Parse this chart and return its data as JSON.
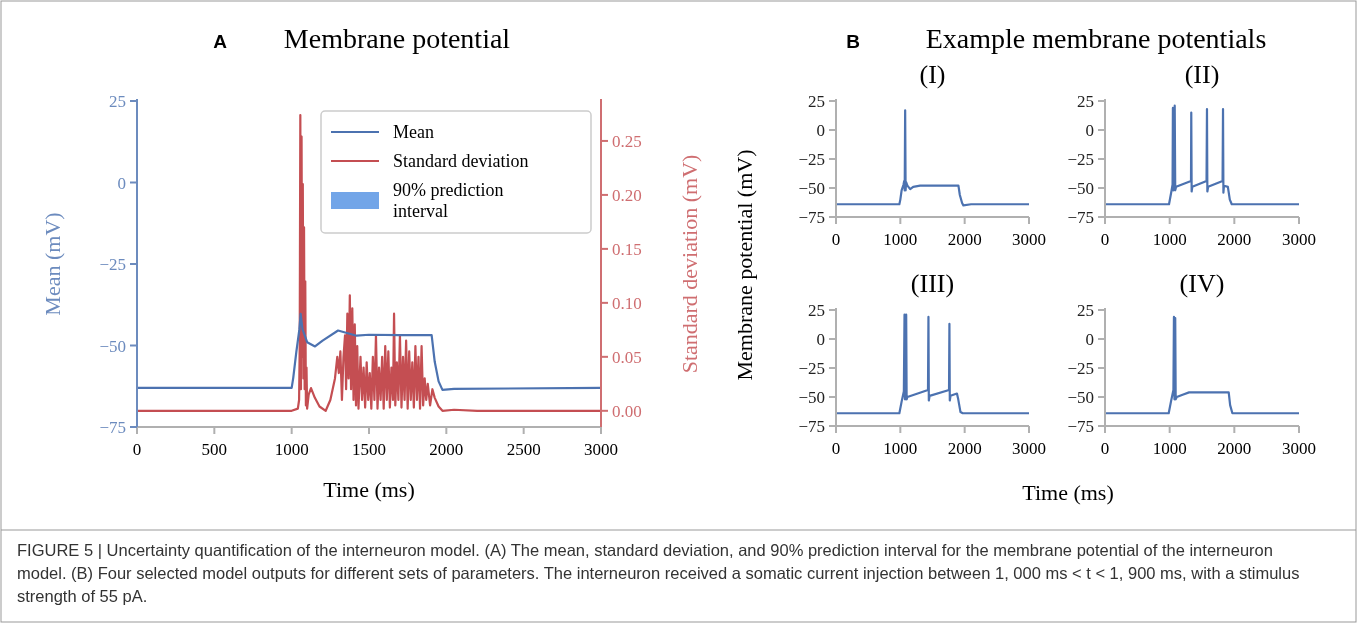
{
  "chart_data": [
    {
      "type": "line",
      "title": "Membrane potential",
      "xlabel": "Time (ms)",
      "ylabel": "Mean (mV)",
      "y2label": "Standard deviation (mV)",
      "legend": "top right",
      "xlim": [
        0,
        3000
      ],
      "xticks": [
        0,
        500,
        1000,
        1500,
        2000,
        2500,
        3000
      ],
      "ylim": [
        -75,
        25
      ],
      "yticks": [
        {
          "value": 25,
          "label": "25"
        },
        {
          "value": 0,
          "label": "0"
        },
        {
          "value": -25,
          "label": "−25"
        },
        {
          "value": -50,
          "label": "−50"
        },
        {
          "value": -75,
          "label": "−75"
        }
      ],
      "y2lim": [
        -0.015,
        0.287
      ],
      "y2ticks": [
        {
          "value": 0,
          "label": "0.00"
        },
        {
          "value": 0.05,
          "label": "0.05"
        },
        {
          "value": 0.1,
          "label": "0.10"
        },
        {
          "value": 0.15,
          "label": "0.15"
        },
        {
          "value": 0.2,
          "label": "0.20"
        },
        {
          "value": 0.25,
          "label": "0.25"
        }
      ],
      "annotations": [
        "A",
        "FIGURE 5 | Uncertainty quantification of the interneuron model. (A) The mean, standard deviation, and 90% prediction interval for the membrane potential of the interneuron model. (B) Four selected model outputs for different sets of parameters. The interneuron received a somatic current injection between 1, 000 ms < t < 1, 900 ms, with a stimulus strength of 55 pA."
      ],
      "series": [
        {
          "name": "Mean",
          "color": "#4c72b0",
          "axis": "y",
          "x": [
            0,
            1000,
            1010,
            1030,
            1050,
            1058,
            1070,
            1100,
            1151,
            1200,
            1300,
            1420,
            1500,
            1700,
            1905,
            1925,
            1950,
            1975,
            2050,
            3000
          ],
          "values": [
            -63,
            -63,
            -60,
            -52,
            -45,
            -40.3,
            -45,
            -49,
            -50.3,
            -48.5,
            -45.4,
            -47,
            -46.7,
            -46.8,
            -46.8,
            -55,
            -61,
            -63.6,
            -63.3,
            -63
          ]
        },
        {
          "name": "Standard deviation",
          "color": "#c44e52",
          "axis": "y2",
          "x": [
            0,
            1000,
            1040,
            1048,
            1052,
            1056,
            1060,
            1064,
            1068,
            1072,
            1076,
            1080,
            1084,
            1088,
            1092,
            1096,
            1100,
            1110,
            1125,
            1150,
            1180,
            1220,
            1250,
            1280,
            1295,
            1305,
            1315,
            1325,
            1335,
            1345,
            1352,
            1360,
            1368,
            1376,
            1384,
            1392,
            1400,
            1408,
            1416,
            1424,
            1432,
            1445,
            1455,
            1465,
            1475,
            1485,
            1495,
            1505,
            1515,
            1525,
            1535,
            1545,
            1555,
            1565,
            1575,
            1585,
            1595,
            1605,
            1615,
            1625,
            1635,
            1645,
            1655,
            1662,
            1670,
            1680,
            1690,
            1700,
            1710,
            1720,
            1730,
            1740,
            1750,
            1760,
            1770,
            1780,
            1790,
            1800,
            1810,
            1820,
            1830,
            1840,
            1850,
            1860,
            1870,
            1880,
            1895,
            1910,
            1925,
            1950,
            1975,
            2050,
            2200,
            3000
          ],
          "values": [
            0,
            0,
            0.002,
            0.01,
            0.06,
            0.274,
            0.02,
            0.254,
            0.05,
            0.21,
            0.03,
            0.17,
            0.02,
            0.12,
            0.005,
            0.04,
            0.002,
            0.015,
            0.021,
            0.012,
            0.004,
            0,
            0.01,
            0.03,
            0.05,
            0.035,
            0.055,
            0.01,
            0.05,
            0.07,
            0.02,
            0.09,
            0.03,
            0.107,
            0.02,
            0.095,
            0.01,
            0.08,
            0.005,
            0.06,
            0.002,
            0.05,
            0.01,
            0.04,
            0.003,
            0.045,
            0.01,
            0.035,
            0.002,
            0.05,
            0.01,
            0.07,
            0.002,
            0.04,
            0.01,
            0.05,
            0.002,
            0.06,
            0.01,
            0.055,
            0.003,
            0.04,
            0.01,
            0.09,
            0.005,
            0.045,
            0.01,
            0.07,
            0.003,
            0.05,
            0.01,
            0.065,
            0.002,
            0.055,
            0.01,
            0.045,
            0.003,
            0.06,
            0.01,
            0.05,
            0.002,
            0.06,
            0.005,
            0.03,
            0.01,
            0.025,
            0.005,
            0.02,
            0.012,
            0.004,
            0,
            0.001,
            0,
            0
          ]
        },
        {
          "name": "90% prediction interval",
          "type": "area",
          "color": "#72a5e8"
        }
      ]
    },
    {
      "type": "line",
      "title": "(I)",
      "ylabel": "Membrane potential (mV)",
      "annotations": [
        "B",
        "Example membrane potentials"
      ],
      "xlim": [
        0,
        3000
      ],
      "xticks": [
        0,
        1000,
        2000,
        3000
      ],
      "ylim": [
        -75,
        25
      ],
      "yticks": [
        {
          "value": 25,
          "label": "25"
        },
        {
          "value": 0,
          "label": "0"
        },
        {
          "value": -25,
          "label": "−25"
        },
        {
          "value": -50,
          "label": "−50"
        },
        {
          "value": -75,
          "label": "−75"
        }
      ],
      "series": [
        {
          "color": "#4c72b0",
          "x": [
            0,
            985,
            1000,
            1020,
            1050,
            1060,
            1068,
            1075,
            1082,
            1090,
            1110,
            1153,
            1200,
            1308,
            1600,
            1903,
            1925,
            1960,
            1980,
            2100,
            3000
          ],
          "values": [
            -64,
            -64,
            -60,
            -52,
            -47,
            -44,
            -52,
            17,
            -52,
            -45,
            -48,
            -51,
            -49,
            -48,
            -48,
            -48,
            -56,
            -63,
            -65,
            -64,
            -64
          ]
        }
      ]
    },
    {
      "type": "line",
      "title": "(II)",
      "xlim": [
        0,
        3000
      ],
      "xticks": [
        0,
        1000,
        2000,
        3000
      ],
      "ylim": [
        -75,
        25
      ],
      "yticks": [
        {
          "value": 25,
          "label": "25"
        },
        {
          "value": 0,
          "label": "0"
        },
        {
          "value": -25,
          "label": "−25"
        },
        {
          "value": -50,
          "label": "−50"
        },
        {
          "value": -75,
          "label": "−75"
        }
      ],
      "series": [
        {
          "color": "#4c72b0",
          "x": [
            0,
            990,
            1030,
            1045,
            1050,
            1058,
            1070,
            1078,
            1086,
            1100,
            1330,
            1334,
            1340,
            1350,
            1570,
            1577,
            1583,
            1595,
            1818,
            1825,
            1831,
            1840,
            1900,
            1930,
            1960,
            2000,
            3000
          ],
          "values": [
            -64,
            -64,
            -52,
            -47,
            19,
            -52,
            -46,
            21,
            -52,
            -49,
            -44,
            15,
            -53,
            -49,
            -44,
            18,
            -53,
            -49,
            -44,
            18,
            -54,
            -48,
            -49,
            -60,
            -64,
            -64,
            -64
          ]
        }
      ]
    },
    {
      "type": "line",
      "title": "(III)",
      "xlim": [
        0,
        3000
      ],
      "xticks": [
        0,
        1000,
        2000,
        3000
      ],
      "ylim": [
        -75,
        25
      ],
      "yticks": [
        {
          "value": 25,
          "label": "25"
        },
        {
          "value": 0,
          "label": "0"
        },
        {
          "value": -25,
          "label": "−25"
        },
        {
          "value": -50,
          "label": "−50"
        },
        {
          "value": -75,
          "label": "−75"
        }
      ],
      "series": [
        {
          "color": "#4c72b0",
          "x": [
            0,
            985,
            1020,
            1055,
            1065,
            1072,
            1085,
            1091,
            1098,
            1110,
            1430,
            1437,
            1443,
            1455,
            1757,
            1763,
            1769,
            1780,
            1880,
            1900,
            1935,
            1970,
            2100,
            3000
          ],
          "values": [
            -64,
            -64,
            -54,
            -45,
            21,
            -52,
            -48,
            21,
            -52,
            -50,
            -44,
            19,
            -53,
            -49,
            -44,
            13,
            -53,
            -49,
            -47,
            -52,
            -63,
            -64,
            -64,
            -64
          ]
        }
      ]
    },
    {
      "type": "line",
      "title": "(IV)",
      "xlabel": "Time (ms)",
      "xlim": [
        0,
        3000
      ],
      "xticks": [
        0,
        1000,
        2000,
        3000
      ],
      "ylim": [
        -75,
        25
      ],
      "yticks": [
        {
          "value": 25,
          "label": "25"
        },
        {
          "value": 0,
          "label": "0"
        },
        {
          "value": -25,
          "label": "−25"
        },
        {
          "value": -50,
          "label": "−50"
        },
        {
          "value": -75,
          "label": "−75"
        }
      ],
      "series": [
        {
          "color": "#4c72b0",
          "x": [
            0,
            985,
            1020,
            1058,
            1066,
            1074,
            1080,
            1086,
            1093,
            1110,
            1200,
            1300,
            1600,
            1913,
            1935,
            1970,
            2100,
            3000
          ],
          "values": [
            -64,
            -64,
            -54,
            -44,
            19,
            -52,
            -47,
            18,
            -52,
            -50,
            -48,
            -46,
            -46,
            -46,
            -57,
            -64,
            -64,
            -64
          ]
        }
      ]
    }
  ]
}
